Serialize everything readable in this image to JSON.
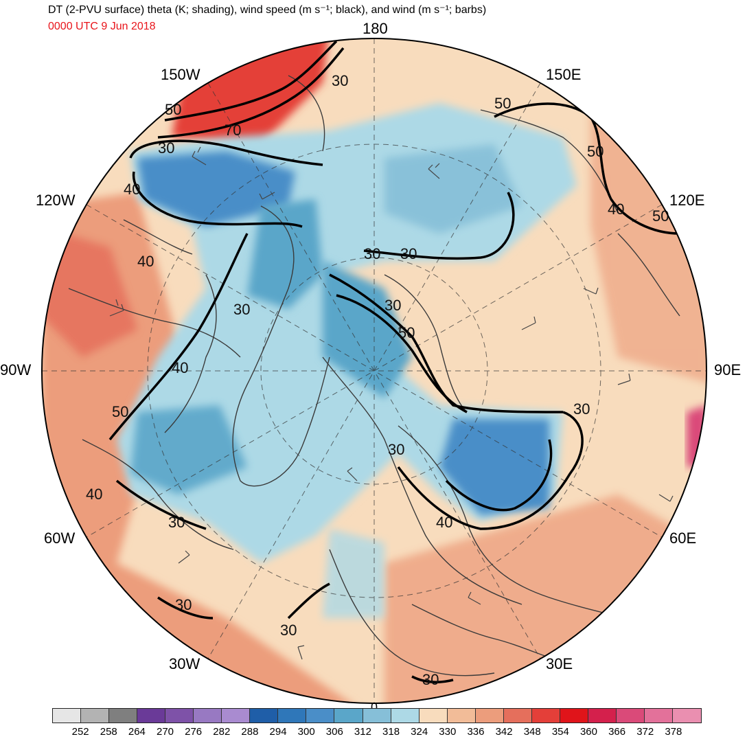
{
  "header": {
    "title": "DT (2-PVU surface) theta (K; shading), wind speed (m s⁻¹; black), and wind (m s⁻¹; barbs)",
    "valid_time": "0000 UTC 9 Jun 2018"
  },
  "map": {
    "projection": "north-polar-stereographic",
    "longitude_labels": [
      "180",
      "150E",
      "120E",
      "90E",
      "60E",
      "30E",
      "0",
      "30W",
      "60W",
      "90W",
      "120W",
      "150W"
    ],
    "contour_labels": [
      "30",
      "50",
      "70",
      "30",
      "40",
      "50",
      "50",
      "40",
      "30",
      "30",
      "30",
      "30",
      "50",
      "30",
      "40",
      "50",
      "40",
      "30",
      "30",
      "30",
      "30",
      "40",
      "30"
    ],
    "contour_label_values_ms": [
      30,
      40,
      50,
      70
    ]
  },
  "colorbar": {
    "ticks": [
      "252",
      "258",
      "264",
      "270",
      "276",
      "282",
      "288",
      "294",
      "300",
      "306",
      "312",
      "318",
      "324",
      "330",
      "336",
      "342",
      "348",
      "354",
      "360",
      "366",
      "372",
      "378"
    ],
    "colors": [
      "#e6e6e6",
      "#b3b3b3",
      "#7f7f7f",
      "#6a3a98",
      "#7e52a8",
      "#9879c2",
      "#a98bd0",
      "#1f5ea8",
      "#2f77b9",
      "#4a8ec8",
      "#5aa6c9",
      "#86bfd8",
      "#add9e6",
      "#f8dcbd",
      "#f2bc98",
      "#ec9d7c",
      "#e56f5c",
      "#e43f39",
      "#e0141a",
      "#d4204c",
      "#da4a79",
      "#e3719a",
      "#ea8fb0"
    ]
  },
  "colors": {
    "cold_core": "#4a8ec8",
    "cool": "#add9e6",
    "mid": "#f8dcbd",
    "warm": "#ec9d7c",
    "hot": "#e43f39"
  }
}
